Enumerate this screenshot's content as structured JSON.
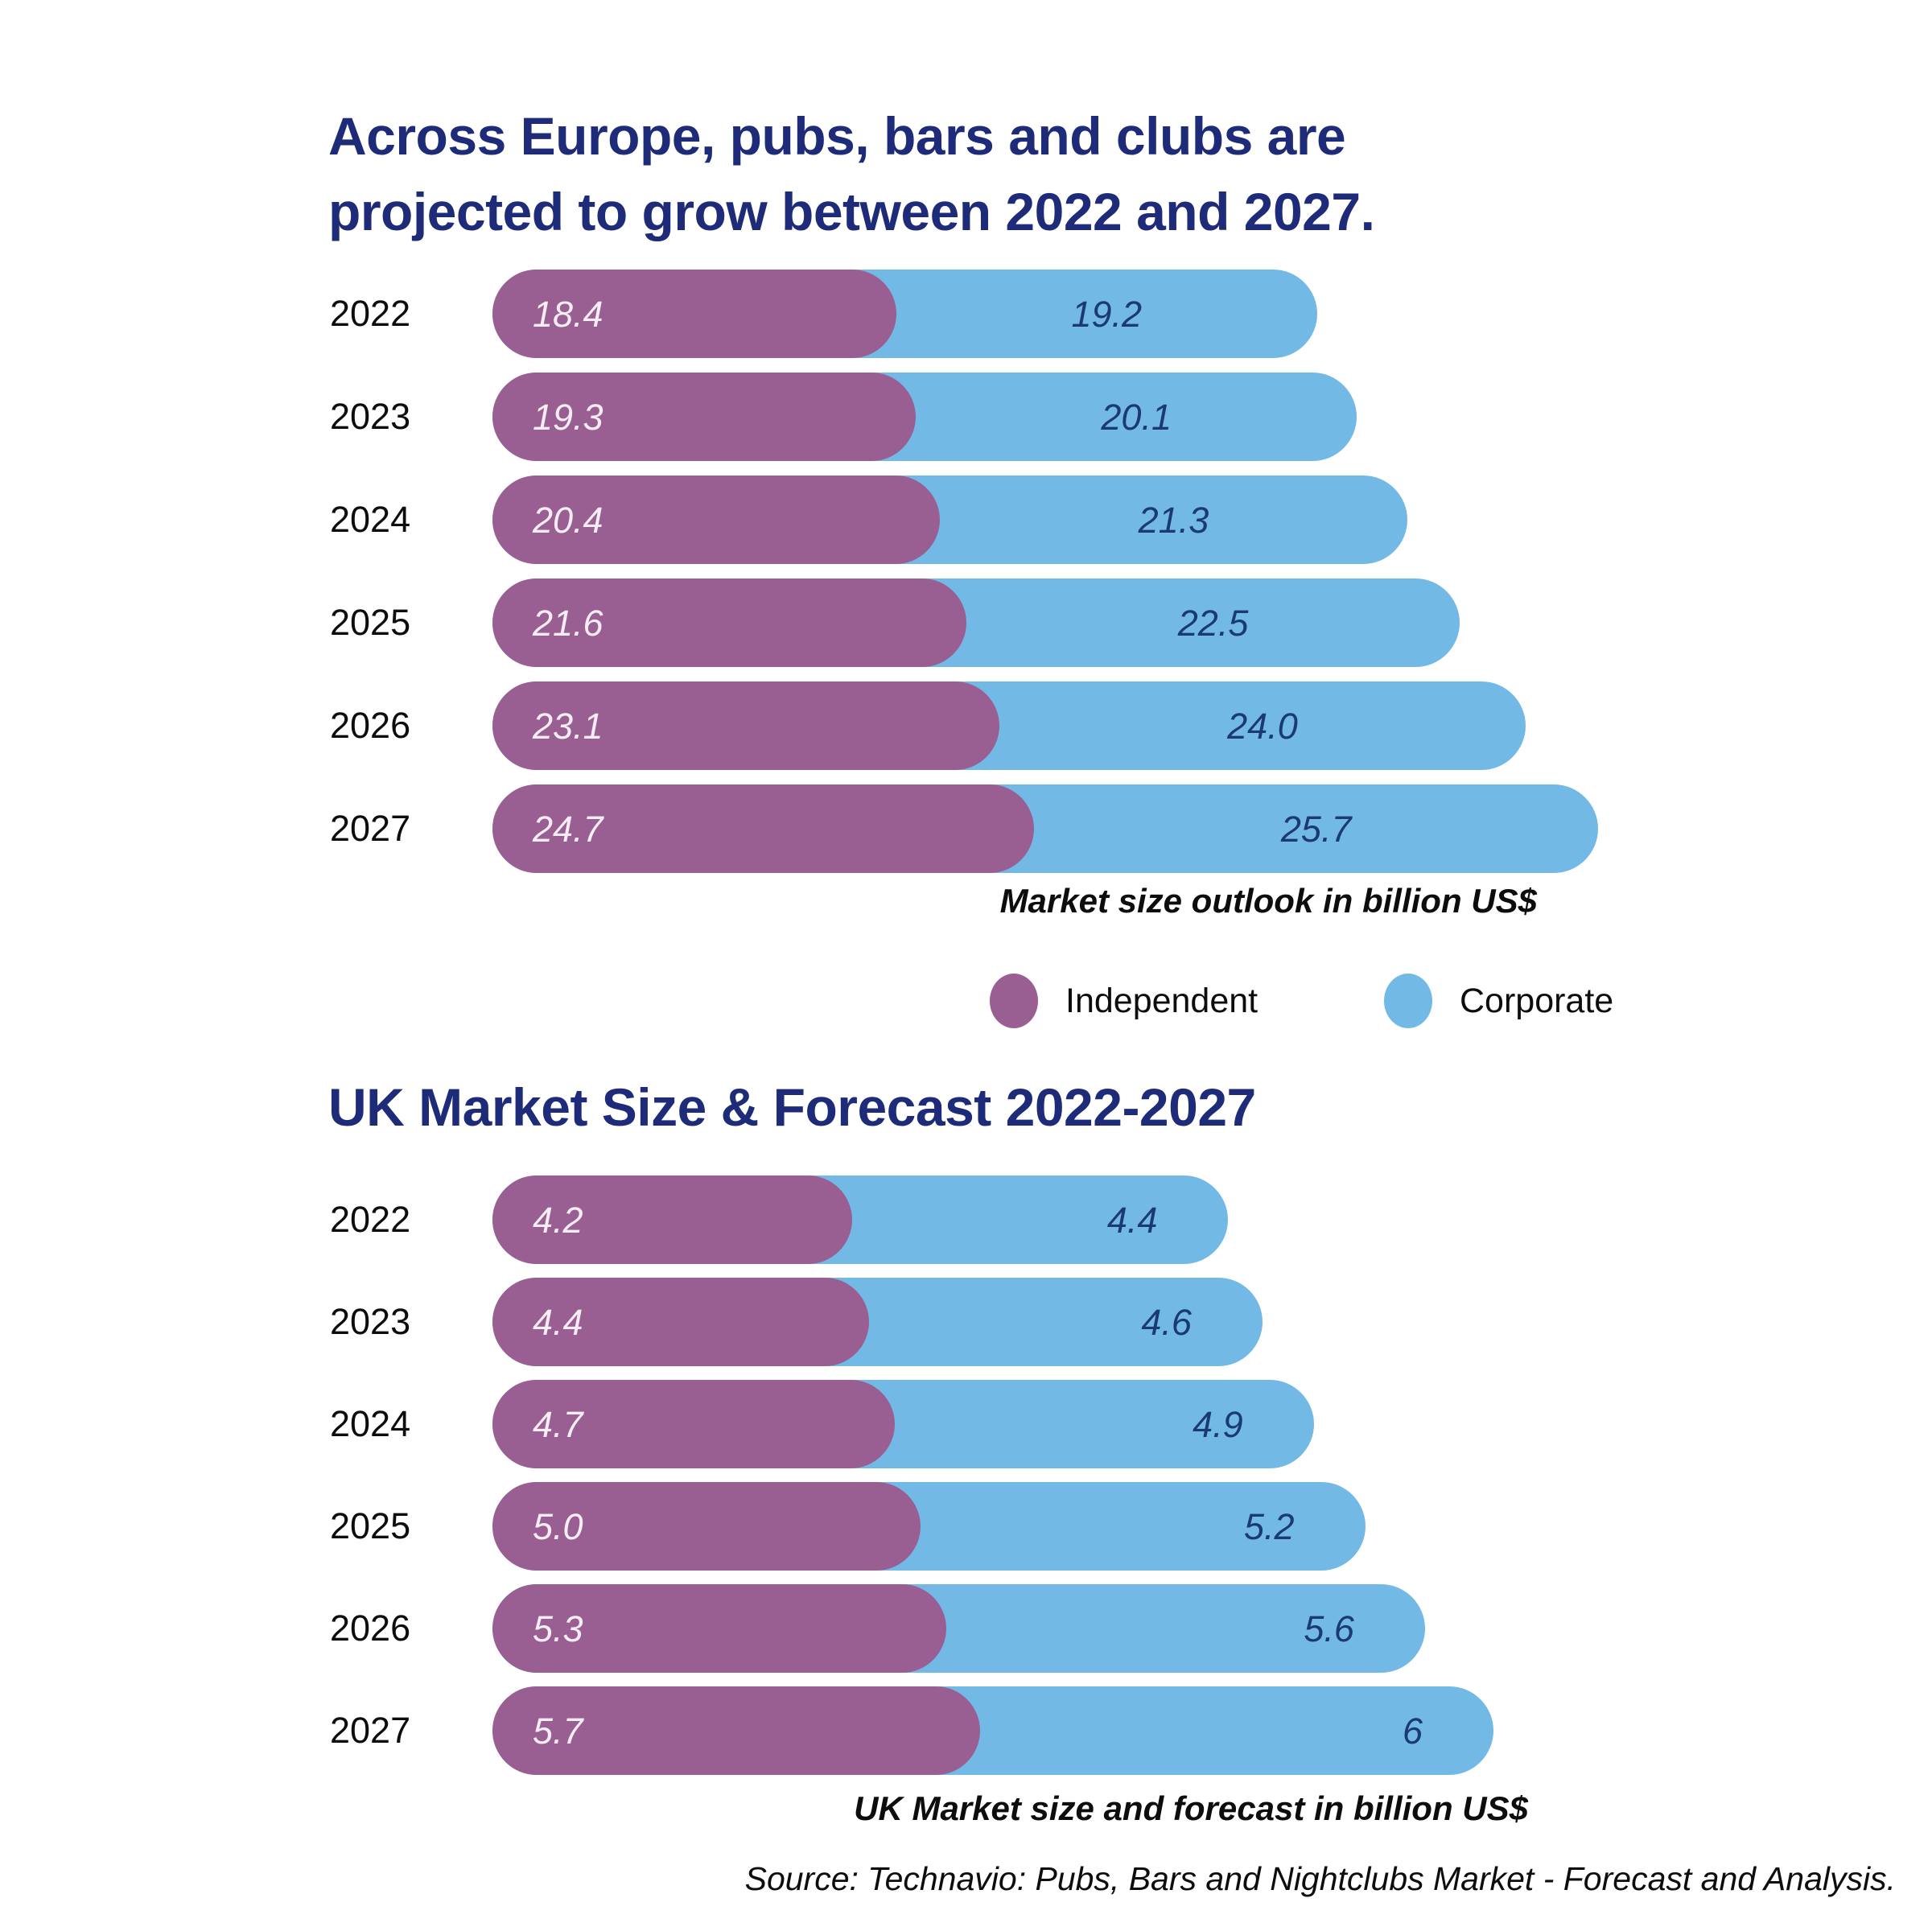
{
  "header": {
    "lines": [
      "Across Europe, pubs, bars and clubs are",
      "projected to grow between 2022 and 2027."
    ]
  },
  "source": "Source: Technavio: Pubs, Bars and Nightclubs Market - Forecast and Analysis.",
  "legend": {
    "independent_label": "Independent",
    "corporate_label": "Corporate"
  },
  "colors": {
    "title": "#1e2b78",
    "independent": "#9a5f92",
    "corporate": "#72b9e6",
    "value_on_purple": "#f7edf5",
    "value_on_blue": "#1b3a70"
  },
  "chart_data": [
    {
      "type": "bar",
      "stacked": true,
      "orientation": "horizontal",
      "title": "Across Europe, pubs, bars and clubs are projected to grow between 2022 and 2027.",
      "categories": [
        "2022",
        "2023",
        "2024",
        "2025",
        "2026",
        "2027"
      ],
      "series": [
        {
          "name": "Independent",
          "values": [
            18.4,
            19.3,
            20.4,
            21.6,
            23.1,
            24.7
          ],
          "labels": [
            "18.4",
            "19.3",
            "20.4",
            "21.6",
            "23.1",
            "24.7"
          ]
        },
        {
          "name": "Corporate",
          "values": [
            19.2,
            20.1,
            21.3,
            22.5,
            24.0,
            25.7
          ],
          "labels": [
            "19.2",
            "20.1",
            "21.3",
            "22.5",
            "24.0",
            "25.7"
          ]
        }
      ],
      "xlabel": "Market size outlook in billion US$",
      "legend_position": "below",
      "grid": false
    },
    {
      "type": "bar",
      "stacked": true,
      "orientation": "horizontal",
      "title": "UK Market Size & Forecast 2022-2027",
      "categories": [
        "2022",
        "2023",
        "2024",
        "2025",
        "2026",
        "2027"
      ],
      "series": [
        {
          "name": "Independent",
          "values": [
            4.2,
            4.4,
            4.7,
            5.0,
            5.3,
            5.7
          ],
          "labels": [
            "4.2",
            "4.4",
            "4.7",
            "5.0",
            "5.3",
            "5.7"
          ]
        },
        {
          "name": "Corporate",
          "values": [
            4.4,
            4.6,
            4.9,
            5.2,
            5.6,
            6.0
          ],
          "labels": [
            "4.4",
            "4.6",
            "4.9",
            "5.2",
            "5.6",
            "6"
          ]
        }
      ],
      "xlabel": "UK Market size and forecast in billion US$",
      "grid": false
    }
  ]
}
